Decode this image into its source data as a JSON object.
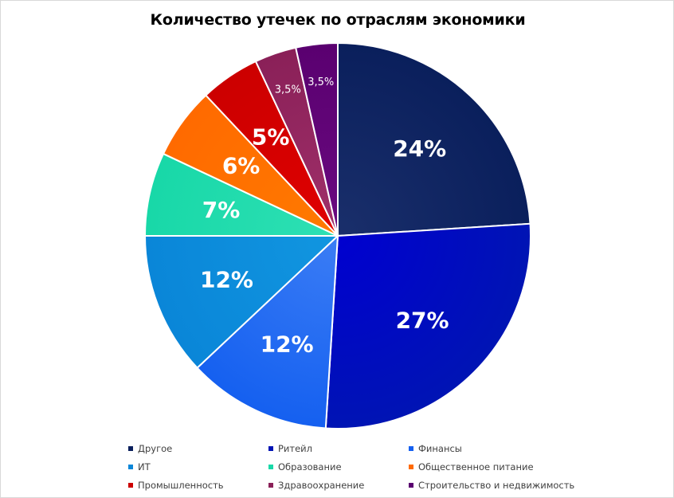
{
  "chart_data": {
    "type": "pie",
    "title": "Количество утечек по отраслям экономики",
    "legend_position": "bottom",
    "slices": [
      {
        "name": "Другое",
        "value": 24,
        "label": "24%",
        "color": "#1a2f6b",
        "color2": "#0a1f5c"
      },
      {
        "name": "Ритейл",
        "value": 27,
        "label": "27%",
        "color": "#0000d0",
        "color2": "#0014b4"
      },
      {
        "name": "Финансы",
        "value": 12,
        "label": "12%",
        "color": "#3b7df5",
        "color2": "#1560f0"
      },
      {
        "name": "ИТ",
        "value": 12,
        "label": "12%",
        "color": "#1196e0",
        "color2": "#0a86d8"
      },
      {
        "name": "Образование",
        "value": 7,
        "label": "7%",
        "color": "#2ee0b4",
        "color2": "#18d8a8"
      },
      {
        "name": "Общественное питание",
        "value": 6,
        "label": "6%",
        "color": "#ff7a00",
        "color2": "#ff6a00"
      },
      {
        "name": "Промышленность",
        "value": 5,
        "label": "5%",
        "color": "#e00000",
        "color2": "#cc0000"
      },
      {
        "name": "Здравоохранение",
        "value": 3.5,
        "label": "3,5%",
        "color": "#a0306a",
        "color2": "#8a2058"
      },
      {
        "name": "Строительство и недвижимость",
        "value": 3.5,
        "label": "3,5%",
        "color": "#6a0a80",
        "color2": "#5a0070"
      }
    ]
  }
}
